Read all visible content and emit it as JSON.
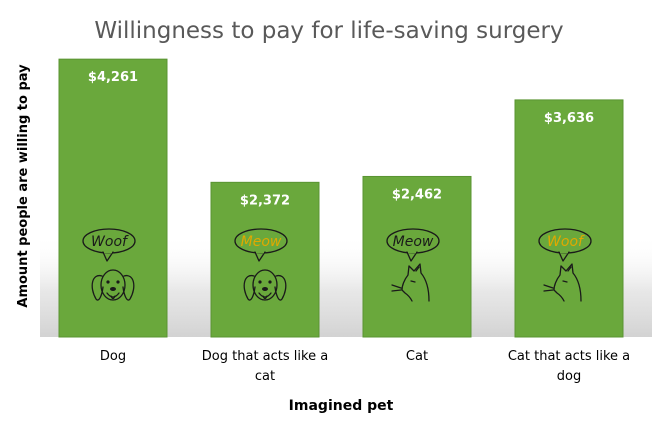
{
  "chart_data": {
    "type": "bar",
    "title": "Willingness to pay for life-saving surgery",
    "xlabel": "Imagined pet",
    "ylabel": "Amount people are willing to pay",
    "categories": [
      "Dog",
      "Dog that acts like a cat",
      "Cat",
      "Cat that acts like a dog"
    ],
    "category_lines": [
      [
        "Dog"
      ],
      [
        "Dog that acts like a",
        "cat"
      ],
      [
        "Cat"
      ],
      [
        "Cat that acts like a",
        "dog"
      ]
    ],
    "values": [
      4261,
      2372,
      2462,
      3636
    ],
    "value_labels": [
      "$4,261",
      "$2,372",
      "$2,462",
      "$3,636"
    ],
    "ylim": [
      0,
      4800
    ],
    "grid": false,
    "legend": "none",
    "bar_color": "#6aa83c",
    "bar_edge_color": "#5a9432",
    "annotations": [
      {
        "animal": "dog",
        "sound": "Woof",
        "sound_color": "#1a1a1a"
      },
      {
        "animal": "dog",
        "sound": "Meow",
        "sound_color": "#e0a800"
      },
      {
        "animal": "cat",
        "sound": "Meow",
        "sound_color": "#1a1a1a"
      },
      {
        "animal": "cat",
        "sound": "Woof",
        "sound_color": "#e0a800"
      }
    ]
  }
}
